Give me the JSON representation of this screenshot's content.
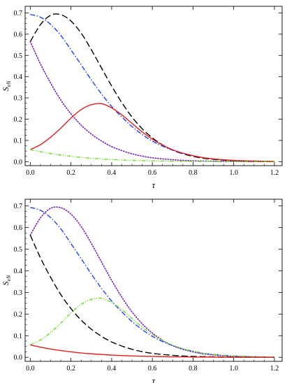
{
  "chart_data": [
    {
      "type": "line",
      "xlabel": "τ",
      "ylabel": "S_vN",
      "ylabel_main": "S",
      "ylabel_sub": "vN",
      "xlim": [
        0,
        1.2
      ],
      "ylim": [
        0,
        0.72
      ],
      "xticks": [
        0.0,
        0.2,
        0.4,
        0.6,
        0.8,
        1.0,
        1.2
      ],
      "xtick_labels": [
        "0.0",
        "0.2",
        "0.4",
        "0.6",
        "0.8",
        "1.0",
        "1.2"
      ],
      "yticks": [
        0.0,
        0.1,
        0.2,
        0.3,
        0.4,
        0.5,
        0.6,
        0.7
      ],
      "ytick_labels": [
        "0.0",
        "0.1",
        "0.2",
        "0.3",
        "0.4",
        "0.5",
        "0.6",
        "0.7"
      ],
      "grid": false,
      "x": [
        0.0,
        0.05,
        0.1,
        0.15,
        0.2,
        0.25,
        0.3,
        0.35,
        0.4,
        0.45,
        0.5,
        0.55,
        0.6,
        0.65,
        0.7,
        0.75,
        0.8,
        0.85,
        0.9,
        0.95,
        1.0,
        1.05,
        1.1,
        1.15,
        1.2
      ],
      "series": [
        {
          "color": "#000000",
          "style": "dashed",
          "values": [
            0.565,
            0.645,
            0.689,
            0.692,
            0.662,
            0.605,
            0.527,
            0.441,
            0.356,
            0.278,
            0.21,
            0.155,
            0.112,
            0.079,
            0.054,
            0.037,
            0.025,
            0.016,
            0.011,
            0.007,
            0.004,
            0.003,
            0.002,
            0.001,
            0.0
          ]
        },
        {
          "color": "#1f3fff",
          "style": "dashdot",
          "values": [
            0.693,
            0.68,
            0.646,
            0.594,
            0.526,
            0.456,
            0.385,
            0.319,
            0.26,
            0.21,
            0.165,
            0.128,
            0.097,
            0.073,
            0.054,
            0.039,
            0.028,
            0.019,
            0.013,
            0.009,
            0.006,
            0.004,
            0.003,
            0.002,
            0.001
          ]
        },
        {
          "color": "#7a1fbf",
          "style": "dotted",
          "values": [
            0.565,
            0.46,
            0.37,
            0.29,
            0.225,
            0.172,
            0.13,
            0.097,
            0.071,
            0.052,
            0.037,
            0.026,
            0.018,
            0.013,
            0.009,
            0.006,
            0.004,
            0.003,
            0.002,
            0.001,
            0.001,
            0.0,
            0.0,
            0.0,
            0.0
          ]
        },
        {
          "color": "#e02020",
          "style": "solid",
          "values": [
            0.057,
            0.08,
            0.115,
            0.158,
            0.205,
            0.245,
            0.268,
            0.273,
            0.253,
            0.22,
            0.18,
            0.14,
            0.106,
            0.078,
            0.056,
            0.04,
            0.028,
            0.019,
            0.013,
            0.009,
            0.006,
            0.004,
            0.003,
            0.002,
            0.001
          ]
        },
        {
          "color": "#66dd22",
          "style": "dashdotdot",
          "values": [
            0.057,
            0.047,
            0.038,
            0.031,
            0.025,
            0.02,
            0.016,
            0.013,
            0.01,
            0.008,
            0.006,
            0.005,
            0.004,
            0.003,
            0.002,
            0.002,
            0.001,
            0.001,
            0.001,
            0.0,
            0.0,
            0.0,
            0.0,
            0.0,
            0.0
          ]
        }
      ]
    },
    {
      "type": "line",
      "xlabel": "τ",
      "ylabel": "S_vN",
      "ylabel_main": "S",
      "ylabel_sub": "vN",
      "xlim": [
        0,
        1.2
      ],
      "ylim": [
        0,
        0.72
      ],
      "xticks": [
        0.0,
        0.2,
        0.4,
        0.6,
        0.8,
        1.0,
        1.2
      ],
      "xtick_labels": [
        "0.0",
        "0.2",
        "0.4",
        "0.6",
        "0.8",
        "1.0",
        "1.2"
      ],
      "yticks": [
        0.0,
        0.1,
        0.2,
        0.3,
        0.4,
        0.5,
        0.6,
        0.7
      ],
      "ytick_labels": [
        "0.0",
        "0.1",
        "0.2",
        "0.3",
        "0.4",
        "0.5",
        "0.6",
        "0.7"
      ],
      "grid": false,
      "x": [
        0.0,
        0.05,
        0.1,
        0.15,
        0.2,
        0.25,
        0.3,
        0.35,
        0.4,
        0.45,
        0.5,
        0.55,
        0.6,
        0.65,
        0.7,
        0.75,
        0.8,
        0.85,
        0.9,
        0.95,
        1.0,
        1.05,
        1.1,
        1.15,
        1.2
      ],
      "series": [
        {
          "color": "#7a1fbf",
          "style": "dotted",
          "values": [
            0.565,
            0.645,
            0.689,
            0.692,
            0.662,
            0.605,
            0.527,
            0.441,
            0.356,
            0.278,
            0.21,
            0.155,
            0.112,
            0.079,
            0.054,
            0.037,
            0.025,
            0.016,
            0.011,
            0.007,
            0.004,
            0.003,
            0.002,
            0.001,
            0.0
          ]
        },
        {
          "color": "#1f3fff",
          "style": "dashdot",
          "values": [
            0.693,
            0.68,
            0.646,
            0.594,
            0.526,
            0.456,
            0.385,
            0.319,
            0.26,
            0.21,
            0.165,
            0.128,
            0.097,
            0.073,
            0.054,
            0.039,
            0.028,
            0.019,
            0.013,
            0.009,
            0.006,
            0.004,
            0.003,
            0.002,
            0.001
          ]
        },
        {
          "color": "#000000",
          "style": "dashed",
          "values": [
            0.565,
            0.46,
            0.37,
            0.29,
            0.225,
            0.172,
            0.13,
            0.097,
            0.071,
            0.052,
            0.037,
            0.026,
            0.018,
            0.013,
            0.009,
            0.006,
            0.004,
            0.003,
            0.002,
            0.001,
            0.001,
            0.0,
            0.0,
            0.0,
            0.0
          ]
        },
        {
          "color": "#66dd22",
          "style": "dashdotdot",
          "values": [
            0.057,
            0.08,
            0.115,
            0.158,
            0.205,
            0.245,
            0.268,
            0.273,
            0.253,
            0.22,
            0.18,
            0.14,
            0.106,
            0.078,
            0.056,
            0.04,
            0.028,
            0.019,
            0.013,
            0.009,
            0.006,
            0.004,
            0.003,
            0.002,
            0.001
          ]
        },
        {
          "color": "#e02020",
          "style": "solid",
          "values": [
            0.057,
            0.047,
            0.038,
            0.031,
            0.025,
            0.02,
            0.016,
            0.013,
            0.01,
            0.008,
            0.006,
            0.005,
            0.004,
            0.003,
            0.002,
            0.002,
            0.001,
            0.001,
            0.001,
            0.0,
            0.0,
            0.0,
            0.0,
            0.0,
            0.0
          ]
        }
      ]
    }
  ]
}
